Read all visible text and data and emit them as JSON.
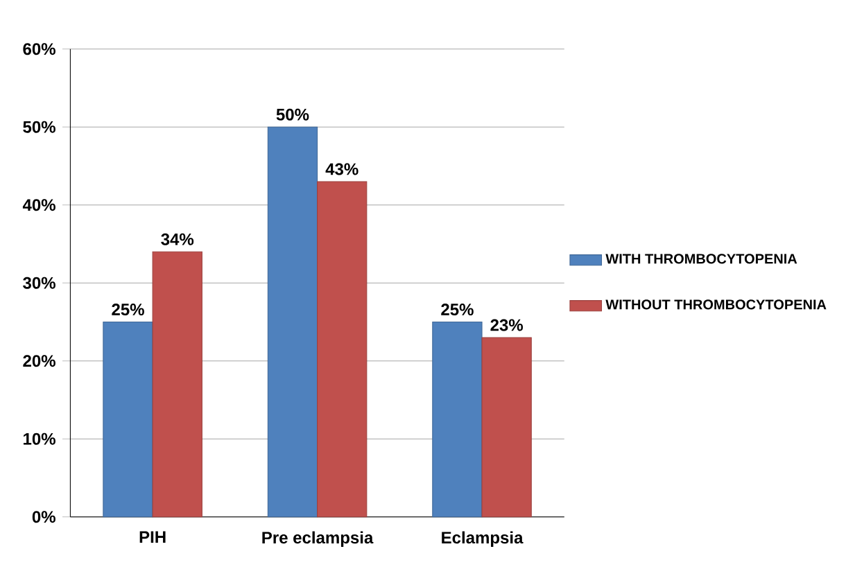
{
  "chart_data": {
    "type": "bar",
    "categories": [
      "PIH",
      "Pre eclampsia",
      "Eclampsia"
    ],
    "series": [
      {
        "name": "WITH THROMBOCYTOPENIA",
        "color": "#4f81bd",
        "values": [
          25,
          50,
          25
        ],
        "value_labels": [
          "25%",
          "50%",
          "25%"
        ]
      },
      {
        "name": "WITHOUT THROMBOCYTOPENIA",
        "color": "#c0504d",
        "values": [
          34,
          43,
          23
        ],
        "value_labels": [
          "34%",
          "43%",
          "23%"
        ]
      }
    ],
    "ylim": [
      0,
      60
    ],
    "yticks": [
      {
        "value": 0,
        "label": "0%"
      },
      {
        "value": 10,
        "label": "10%"
      },
      {
        "value": 20,
        "label": "20%"
      },
      {
        "value": 30,
        "label": "30%"
      },
      {
        "value": 40,
        "label": "40%"
      },
      {
        "value": 50,
        "label": "50%"
      },
      {
        "value": 60,
        "label": "60%"
      }
    ],
    "grid": "y",
    "legend": "right"
  }
}
